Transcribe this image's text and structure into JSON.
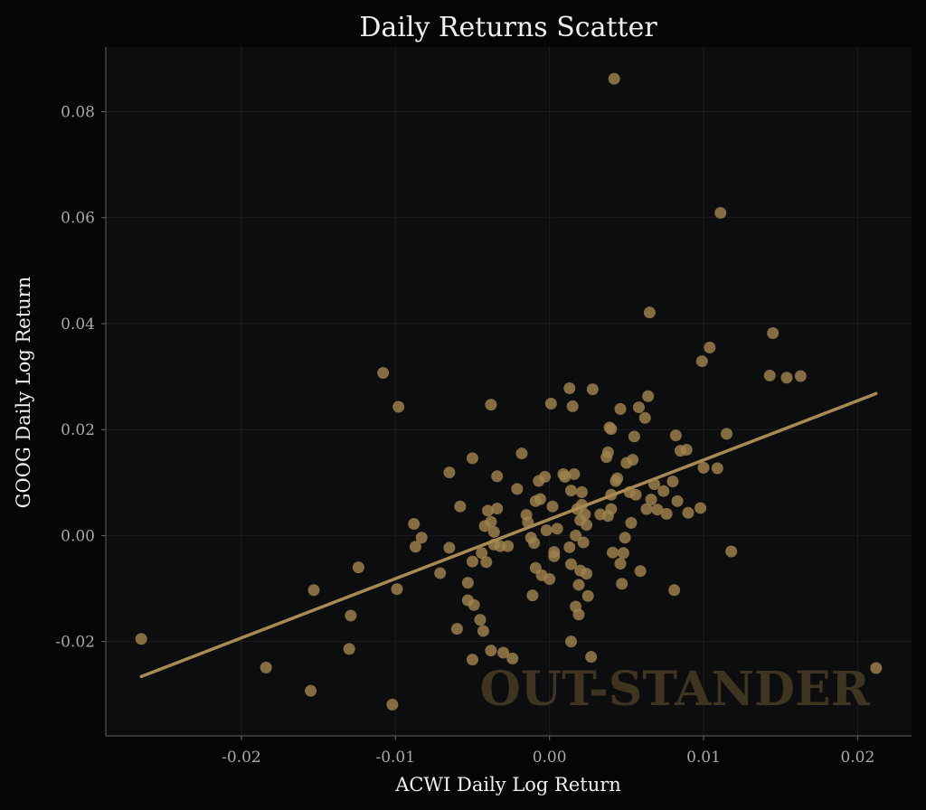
{
  "chart_data": {
    "type": "scatter",
    "title": "Daily Returns Scatter",
    "xlabel": "ACWI Daily Log Return",
    "ylabel": "GOOG Daily Log Return",
    "xlim": [
      -0.0288,
      0.0235
    ],
    "ylim": [
      -0.0378,
      0.0922
    ],
    "x_ticks": [
      -0.02,
      -0.01,
      0.0,
      0.01,
      0.02
    ],
    "x_tick_labels": [
      "-0.02",
      "-0.01",
      "0.00",
      "0.01",
      "0.02"
    ],
    "y_ticks": [
      -0.02,
      0.0,
      0.02,
      0.04,
      0.06,
      0.08
    ],
    "y_tick_labels": [
      "-0.02",
      "0.00",
      "0.02",
      "0.04",
      "0.06",
      "0.08"
    ],
    "grid": true,
    "watermark": "OUT-STANDER",
    "colors": {
      "background": "#050505",
      "plot_background": "#0c0d0f",
      "points": "#a0824d",
      "fit_line": "#a88b52",
      "grid": "#1c1d20",
      "spine": "#444444"
    },
    "fit_line": {
      "x": [
        -0.0265,
        0.0212
      ],
      "y": [
        -0.0266,
        0.0268
      ]
    },
    "points": [
      {
        "x": -0.0265,
        "y": -0.0195
      },
      {
        "x": -0.0184,
        "y": -0.0249
      },
      {
        "x": -0.0155,
        "y": -0.0293
      },
      {
        "x": -0.0153,
        "y": -0.0103
      },
      {
        "x": -0.0129,
        "y": -0.0151
      },
      {
        "x": -0.013,
        "y": -0.0214
      },
      {
        "x": -0.0124,
        "y": -0.006
      },
      {
        "x": -0.0108,
        "y": 0.0307
      },
      {
        "x": -0.0102,
        "y": -0.0319
      },
      {
        "x": -0.0099,
        "y": -0.0101
      },
      {
        "x": -0.0098,
        "y": 0.0243
      },
      {
        "x": -0.0088,
        "y": 0.0022
      },
      {
        "x": -0.0087,
        "y": -0.0021
      },
      {
        "x": -0.0083,
        "y": -0.0004
      },
      {
        "x": -0.0071,
        "y": -0.0071
      },
      {
        "x": -0.0065,
        "y": 0.0119
      },
      {
        "x": -0.0065,
        "y": -0.0023
      },
      {
        "x": -0.006,
        "y": -0.0176
      },
      {
        "x": -0.0058,
        "y": 0.0055
      },
      {
        "x": -0.0053,
        "y": -0.0089
      },
      {
        "x": -0.0053,
        "y": -0.0122
      },
      {
        "x": -0.005,
        "y": 0.0146
      },
      {
        "x": -0.005,
        "y": -0.0049
      },
      {
        "x": -0.005,
        "y": -0.0234
      },
      {
        "x": -0.0049,
        "y": -0.0131
      },
      {
        "x": -0.0045,
        "y": -0.0159
      },
      {
        "x": -0.0044,
        "y": -0.0033
      },
      {
        "x": -0.0043,
        "y": -0.018
      },
      {
        "x": -0.0042,
        "y": 0.0018
      },
      {
        "x": -0.0041,
        "y": -0.005
      },
      {
        "x": -0.004,
        "y": 0.0047
      },
      {
        "x": -0.0038,
        "y": 0.0247
      },
      {
        "x": -0.0038,
        "y": 0.0026
      },
      {
        "x": -0.0038,
        "y": -0.0217
      },
      {
        "x": -0.0036,
        "y": 0.0007
      },
      {
        "x": -0.0036,
        "y": -0.0017
      },
      {
        "x": -0.0034,
        "y": 0.0112
      },
      {
        "x": -0.0034,
        "y": 0.0051
      },
      {
        "x": -0.0032,
        "y": -0.002
      },
      {
        "x": -0.003,
        "y": -0.0221
      },
      {
        "x": -0.0027,
        "y": -0.002
      },
      {
        "x": -0.0024,
        "y": -0.0232
      },
      {
        "x": -0.0021,
        "y": 0.0088
      },
      {
        "x": -0.0018,
        "y": 0.0155
      },
      {
        "x": -0.0015,
        "y": 0.0039
      },
      {
        "x": -0.0014,
        "y": 0.0025
      },
      {
        "x": -0.0012,
        "y": -0.0004
      },
      {
        "x": -0.0011,
        "y": -0.0113
      },
      {
        "x": -0.001,
        "y": -0.0014
      },
      {
        "x": -0.0009,
        "y": 0.0065
      },
      {
        "x": -0.0009,
        "y": -0.0061
      },
      {
        "x": -0.0007,
        "y": 0.0103
      },
      {
        "x": -0.0006,
        "y": 0.0069
      },
      {
        "x": -0.0005,
        "y": -0.0075
      },
      {
        "x": -0.0003,
        "y": 0.0111
      },
      {
        "x": -0.0002,
        "y": 0.001
      },
      {
        "x": 0.0,
        "y": -0.0082
      },
      {
        "x": 0.0001,
        "y": 0.0249
      },
      {
        "x": 0.0002,
        "y": 0.0055
      },
      {
        "x": 0.0003,
        "y": -0.0031
      },
      {
        "x": 0.0003,
        "y": -0.0039
      },
      {
        "x": 0.0005,
        "y": 0.0013
      },
      {
        "x": 0.0009,
        "y": 0.0116
      },
      {
        "x": 0.001,
        "y": 0.0111
      },
      {
        "x": 0.0013,
        "y": 0.0278
      },
      {
        "x": 0.0013,
        "y": -0.0022
      },
      {
        "x": 0.0014,
        "y": 0.0085
      },
      {
        "x": 0.0014,
        "y": -0.0054
      },
      {
        "x": 0.0014,
        "y": -0.02
      },
      {
        "x": 0.0015,
        "y": 0.0244
      },
      {
        "x": 0.0016,
        "y": 0.0116
      },
      {
        "x": 0.0017,
        "y": 0.0
      },
      {
        "x": 0.0017,
        "y": -0.0134
      },
      {
        "x": 0.0018,
        "y": 0.005
      },
      {
        "x": 0.0019,
        "y": -0.0093
      },
      {
        "x": 0.0019,
        "y": -0.0149
      },
      {
        "x": 0.002,
        "y": 0.0029
      },
      {
        "x": 0.002,
        "y": -0.0066
      },
      {
        "x": 0.0021,
        "y": 0.0082
      },
      {
        "x": 0.0021,
        "y": 0.0058
      },
      {
        "x": 0.0022,
        "y": -0.0013
      },
      {
        "x": 0.0023,
        "y": 0.004
      },
      {
        "x": 0.0024,
        "y": 0.002
      },
      {
        "x": 0.0024,
        "y": -0.0072
      },
      {
        "x": 0.0025,
        "y": -0.0114
      },
      {
        "x": 0.0027,
        "y": -0.0229
      },
      {
        "x": 0.0028,
        "y": 0.0276
      },
      {
        "x": 0.0033,
        "y": 0.004
      },
      {
        "x": 0.0037,
        "y": 0.0148
      },
      {
        "x": 0.0038,
        "y": 0.0157
      },
      {
        "x": 0.0038,
        "y": 0.0037
      },
      {
        "x": 0.0039,
        "y": 0.0204
      },
      {
        "x": 0.004,
        "y": 0.0201
      },
      {
        "x": 0.004,
        "y": 0.0077
      },
      {
        "x": 0.004,
        "y": 0.005
      },
      {
        "x": 0.0041,
        "y": -0.0032
      },
      {
        "x": 0.0042,
        "y": 0.0862
      },
      {
        "x": 0.0043,
        "y": 0.0103
      },
      {
        "x": 0.0044,
        "y": 0.0108
      },
      {
        "x": 0.0046,
        "y": 0.0239
      },
      {
        "x": 0.0046,
        "y": -0.0053
      },
      {
        "x": 0.0047,
        "y": -0.0091
      },
      {
        "x": 0.0048,
        "y": -0.0033
      },
      {
        "x": 0.0049,
        "y": -0.0004
      },
      {
        "x": 0.005,
        "y": 0.0137
      },
      {
        "x": 0.0052,
        "y": 0.0082
      },
      {
        "x": 0.0053,
        "y": 0.0024
      },
      {
        "x": 0.0054,
        "y": 0.0143
      },
      {
        "x": 0.0055,
        "y": 0.0187
      },
      {
        "x": 0.0056,
        "y": 0.0077
      },
      {
        "x": 0.0058,
        "y": 0.0242
      },
      {
        "x": 0.0059,
        "y": -0.0067
      },
      {
        "x": 0.0062,
        "y": 0.0222
      },
      {
        "x": 0.0063,
        "y": 0.005
      },
      {
        "x": 0.0064,
        "y": 0.0263
      },
      {
        "x": 0.0065,
        "y": 0.0421
      },
      {
        "x": 0.0066,
        "y": 0.0068
      },
      {
        "x": 0.0068,
        "y": 0.0097
      },
      {
        "x": 0.007,
        "y": 0.0049
      },
      {
        "x": 0.0074,
        "y": 0.0084
      },
      {
        "x": 0.0076,
        "y": 0.0041
      },
      {
        "x": 0.008,
        "y": 0.0102
      },
      {
        "x": 0.0081,
        "y": -0.0103
      },
      {
        "x": 0.0082,
        "y": 0.0189
      },
      {
        "x": 0.0083,
        "y": 0.0065
      },
      {
        "x": 0.0085,
        "y": 0.016
      },
      {
        "x": 0.0089,
        "y": 0.0162
      },
      {
        "x": 0.009,
        "y": 0.0043
      },
      {
        "x": 0.0098,
        "y": 0.0052
      },
      {
        "x": 0.0099,
        "y": 0.0329
      },
      {
        "x": 0.01,
        "y": 0.0128
      },
      {
        "x": 0.0104,
        "y": 0.0355
      },
      {
        "x": 0.0109,
        "y": 0.0127
      },
      {
        "x": 0.0111,
        "y": 0.0609
      },
      {
        "x": 0.0115,
        "y": 0.0192
      },
      {
        "x": 0.0118,
        "y": -0.003
      },
      {
        "x": 0.0143,
        "y": 0.0302
      },
      {
        "x": 0.0145,
        "y": 0.0382
      },
      {
        "x": 0.0154,
        "y": 0.0298
      },
      {
        "x": 0.0163,
        "y": 0.0301
      },
      {
        "x": 0.0212,
        "y": -0.025
      }
    ]
  }
}
